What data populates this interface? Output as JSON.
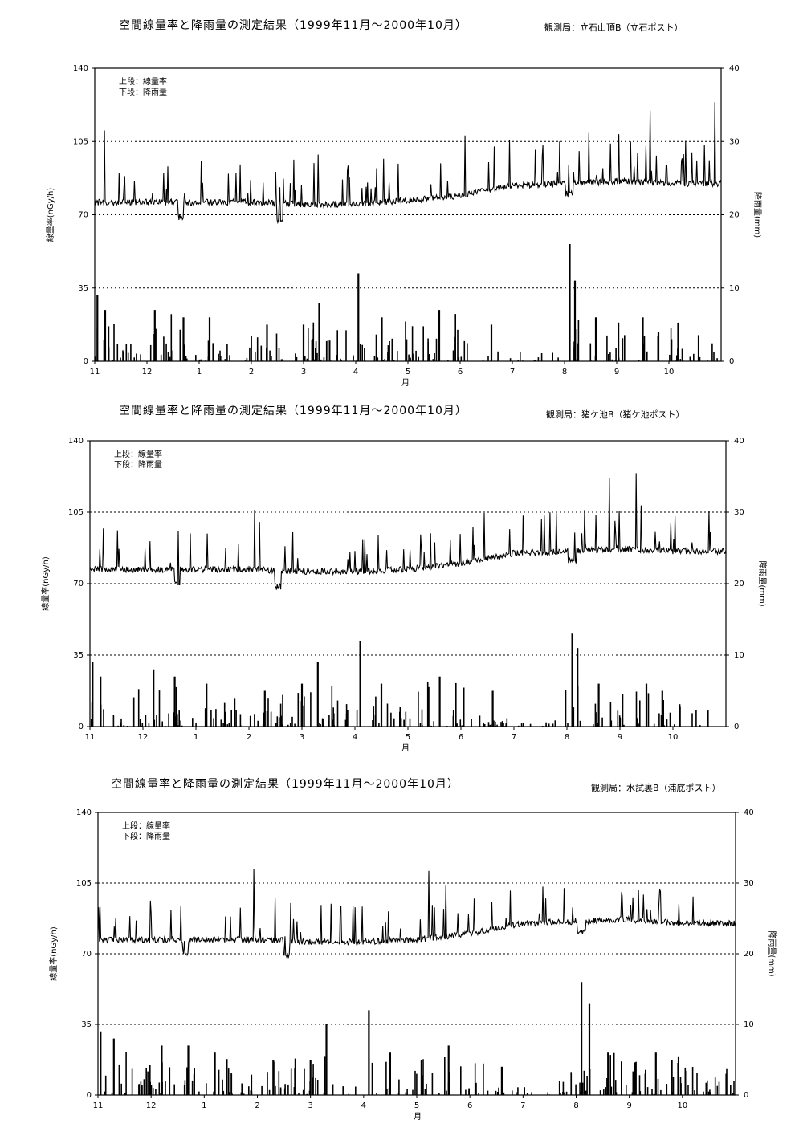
{
  "chart_data": [
    {
      "type": "line",
      "title": "空間線量率と降雨量の測定結果（1999年11月～2000年10月）",
      "station": "観測局：立石山頂B（立石ポスト）",
      "legend": [
        "上段：線量率",
        "下段：降雨量"
      ],
      "xlabel": "月",
      "ylabel_left": "線量率(nGy/h)",
      "ylabel_right": "降雨量(mm)",
      "x_ticks": [
        "11",
        "12",
        "1",
        "2",
        "3",
        "4",
        "5",
        "6",
        "7",
        "8",
        "9",
        "10"
      ],
      "y_left_ticks": [
        "0",
        "35",
        "70",
        "105",
        "140"
      ],
      "y_right_ticks": [
        "0",
        "10",
        "20",
        "30",
        "40"
      ],
      "ylim_left": [
        0,
        140
      ],
      "ylim_right": [
        0,
        40
      ],
      "grid": "horizontal dotted at 35, 70, 105",
      "series": [
        {
          "axis": "left",
          "baseline_by_month": [
            76,
            76,
            76,
            76,
            75,
            75,
            77,
            79,
            84,
            85,
            86,
            85
          ]
        },
        {
          "axis": "right",
          "peaks": [
            [
              0.05,
              9
            ],
            [
              0.2,
              7
            ],
            [
              1.15,
              7
            ],
            [
              1.7,
              6
            ],
            [
              2.2,
              6
            ],
            [
              3.3,
              5
            ],
            [
              4.0,
              5
            ],
            [
              4.3,
              8
            ],
            [
              5.05,
              12
            ],
            [
              5.5,
              6
            ],
            [
              6.6,
              7
            ],
            [
              7.6,
              5
            ],
            [
              9.1,
              16
            ],
            [
              9.2,
              11
            ],
            [
              9.6,
              6
            ],
            [
              10.5,
              6
            ],
            [
              10.8,
              4
            ]
          ]
        }
      ]
    },
    {
      "type": "line",
      "title": "空間線量率と降雨量の測定結果（1999年11月～2000年10月）",
      "station": "観測局：猪ケ池B（猪ケ池ポスト）",
      "legend": [
        "上段：線量率",
        "下段：降雨量"
      ],
      "xlabel": "月",
      "ylabel_left": "線量率(nGy/h)",
      "ylabel_right": "降雨量(mm)",
      "x_ticks": [
        "11",
        "12",
        "1",
        "2",
        "3",
        "4",
        "5",
        "6",
        "7",
        "8",
        "9",
        "10"
      ],
      "y_left_ticks": [
        "0",
        "35",
        "70",
        "105",
        "140"
      ],
      "y_right_ticks": [
        "0",
        "10",
        "20",
        "30",
        "40"
      ],
      "ylim_left": [
        0,
        140
      ],
      "ylim_right": [
        0,
        40
      ],
      "grid": "horizontal dotted at 35, 70, 105",
      "series": [
        {
          "axis": "left",
          "baseline_by_month": [
            77,
            77,
            77,
            77,
            76,
            76,
            77,
            80,
            85,
            86,
            87,
            86
          ]
        },
        {
          "axis": "right",
          "peaks": [
            [
              0.05,
              9
            ],
            [
              0.2,
              7
            ],
            [
              1.2,
              8
            ],
            [
              1.6,
              7
            ],
            [
              2.2,
              6
            ],
            [
              3.3,
              5
            ],
            [
              4.0,
              6
            ],
            [
              4.3,
              9
            ],
            [
              5.1,
              12
            ],
            [
              5.5,
              6
            ],
            [
              6.6,
              7
            ],
            [
              7.6,
              5
            ],
            [
              9.1,
              13
            ],
            [
              9.2,
              11
            ],
            [
              9.6,
              6
            ],
            [
              10.5,
              6
            ],
            [
              10.8,
              5
            ]
          ]
        }
      ]
    },
    {
      "type": "line",
      "title": "空間線量率と降雨量の測定結果（1999年11月～2000年10月）",
      "station": "観測局：水試裏B（浦底ポスト）",
      "legend": [
        "上段：線量率",
        "下段：降雨量"
      ],
      "xlabel": "月",
      "ylabel_left": "線量率(nGy/h)",
      "ylabel_right": "降雨量(mm)",
      "x_ticks": [
        "11",
        "12",
        "1",
        "2",
        "3",
        "4",
        "5",
        "6",
        "7",
        "8",
        "9",
        "10"
      ],
      "y_left_ticks": [
        "0",
        "35",
        "70",
        "105",
        "140"
      ],
      "y_right_ticks": [
        "0",
        "10",
        "20",
        "30",
        "40"
      ],
      "ylim_left": [
        0,
        140
      ],
      "ylim_right": [
        0,
        40
      ],
      "grid": "horizontal dotted at 35, 70, 105",
      "series": [
        {
          "axis": "left",
          "baseline_by_month": [
            77,
            77,
            77,
            77,
            76,
            76,
            77,
            80,
            85,
            86,
            87,
            85
          ]
        },
        {
          "axis": "right",
          "peaks": [
            [
              0.05,
              9
            ],
            [
              0.3,
              8
            ],
            [
              1.2,
              7
            ],
            [
              1.7,
              7
            ],
            [
              2.2,
              6
            ],
            [
              3.3,
              5
            ],
            [
              4.0,
              5
            ],
            [
              4.3,
              10
            ],
            [
              5.1,
              12
            ],
            [
              5.5,
              6
            ],
            [
              6.6,
              7
            ],
            [
              7.6,
              4
            ],
            [
              9.1,
              16
            ],
            [
              9.25,
              13
            ],
            [
              9.6,
              6
            ],
            [
              10.5,
              6
            ],
            [
              10.8,
              5
            ]
          ]
        }
      ]
    }
  ]
}
